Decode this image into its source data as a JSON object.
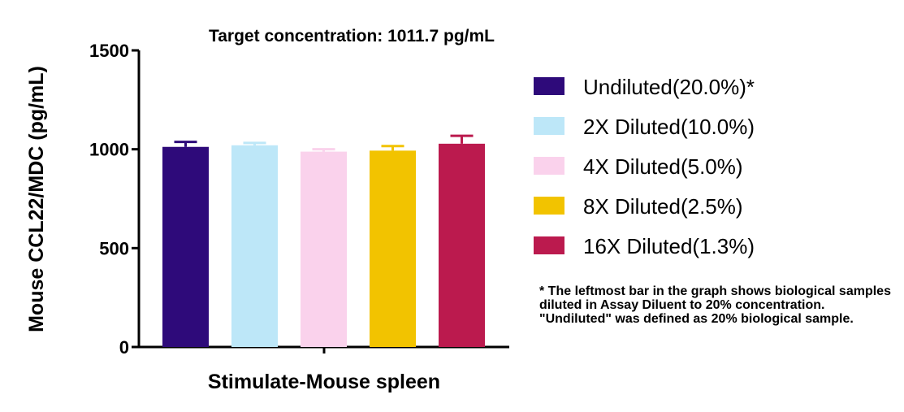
{
  "chart_data": {
    "type": "bar",
    "title": "Target concentration: 1011.7 pg/mL",
    "ylabel": "Mouse CCL22/MDC (pg/mL)",
    "xlabel": "Stimulate-Mouse spleen",
    "ylim": [
      0,
      1500
    ],
    "yticks": [
      {
        "value": 0,
        "label": "0"
      },
      {
        "value": 500,
        "label": "500"
      },
      {
        "value": 1000,
        "label": "1000"
      },
      {
        "value": 1500,
        "label": "1500"
      }
    ],
    "grid": false,
    "legend_position": "right",
    "series": [
      {
        "name": "Undiluted(20.0%)*",
        "value": 1012,
        "error": 25,
        "color": "#2E0A7A"
      },
      {
        "name": "2X Diluted(10.0%)",
        "value": 1020,
        "error": 12,
        "color": "#BDE7F8"
      },
      {
        "name": "4X Diluted(5.0%)",
        "value": 988,
        "error": 12,
        "color": "#FAD2EC"
      },
      {
        "name": "8X Diluted(2.5%)",
        "value": 993,
        "error": 23,
        "color": "#F2C300"
      },
      {
        "name": "16X Diluted(1.3%)",
        "value": 1028,
        "error": 40,
        "color": "#BB1A4E"
      }
    ]
  },
  "footnote": "* The leftmost bar in the graph shows biological samples diluted in Assay Diluent to 20% concentration. \"Undiluted\" was defined as 20% biological sample."
}
